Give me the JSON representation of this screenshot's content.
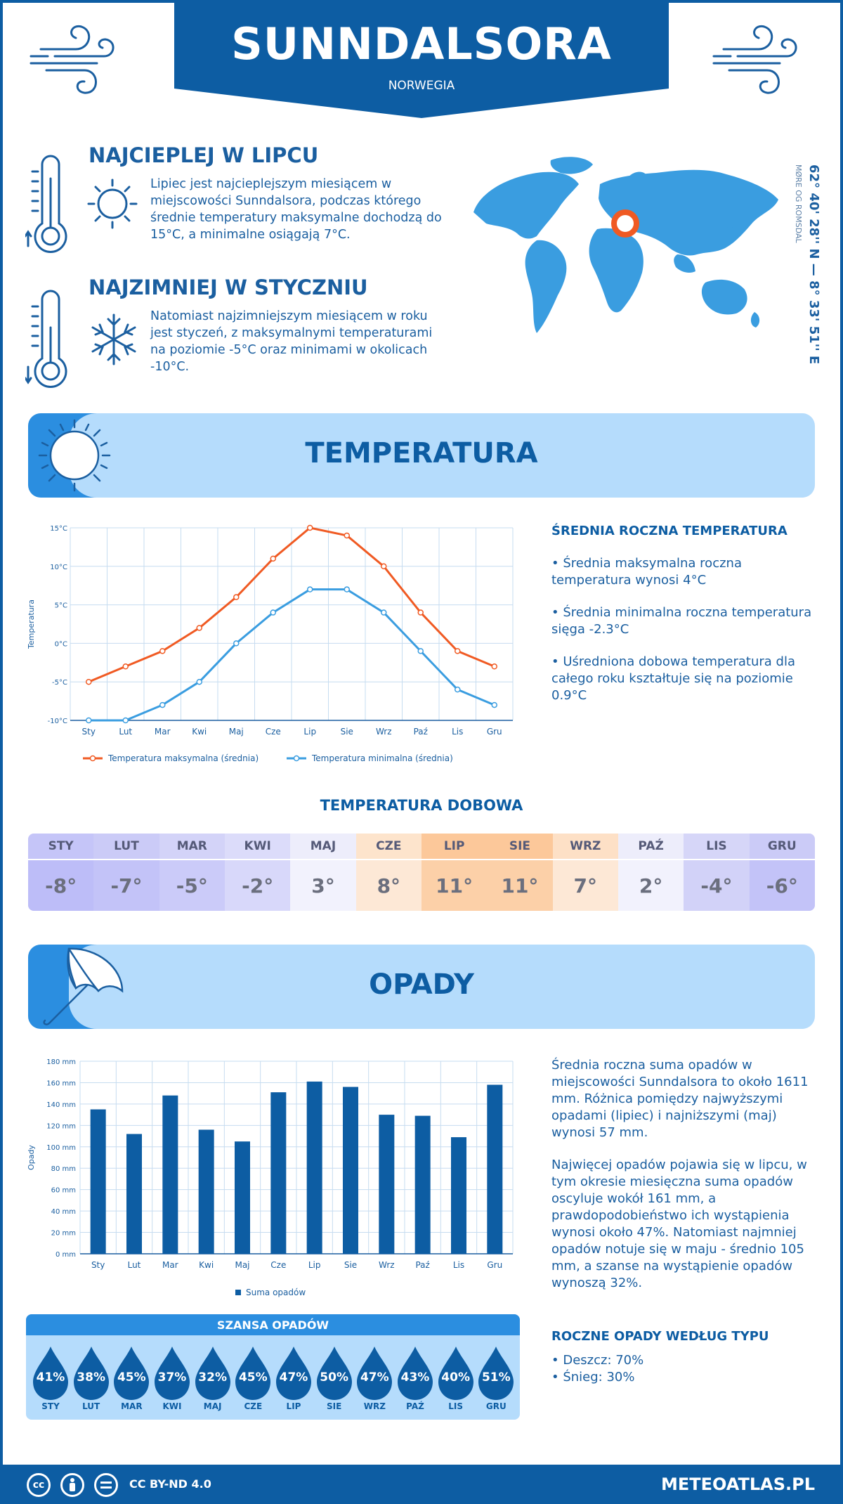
{
  "header": {
    "city": "SUNNDALSORA",
    "country": "NORWEGIA"
  },
  "hottest": {
    "title": "NAJCIEPLEJ W LIPCU",
    "text": "Lipiec jest najcieplejszym miesiącem w miejscowości Sunndalsora, podczas którego średnie temperatury maksymalne dochodzą do 15°C, a minimalne osiągają 7°C."
  },
  "coldest": {
    "title": "NAJZIMNIEJ W STYCZNIU",
    "text": "Natomiast najzimniejszym miesiącem w roku jest styczeń, z maksymalnymi temperaturami na poziomie -5°C oraz minimami w okolicach -10°C."
  },
  "location": {
    "coords": "62° 40' 28'' N — 8° 33' 51'' E",
    "region": "MØRE OG ROMSDAL"
  },
  "temperature_section": {
    "title": "TEMPERATURA",
    "summary_title": "ŚREDNIA ROCZNA TEMPERATURA",
    "bullets": [
      "• Średnia maksymalna roczna temperatura wynosi 4°C",
      "• Średnia minimalna roczna temperatura sięga -2.3°C",
      "• Uśredniona dobowa temperatura dla całego roku kształtuje się na poziomie 0.9°C"
    ]
  },
  "daily": {
    "title": "TEMPERATURA DOBOWA",
    "months": [
      "STY",
      "LUT",
      "MAR",
      "KWI",
      "MAJ",
      "CZE",
      "LIP",
      "SIE",
      "WRZ",
      "PAŹ",
      "LIS",
      "GRU"
    ],
    "values": [
      "-8°",
      "-7°",
      "-5°",
      "-2°",
      "3°",
      "8°",
      "11°",
      "11°",
      "7°",
      "2°",
      "-4°",
      "-6°"
    ],
    "head_colors": [
      "#c5c5f8",
      "#cbcbf7",
      "#d3d3f8",
      "#dcdcfa",
      "#ededfb",
      "#fde4cc",
      "#fcc89a",
      "#fcc89a",
      "#fde0c6",
      "#ededfb",
      "#d6d6f8",
      "#cbcbf7"
    ],
    "val_colors": [
      "#bdbdf8",
      "#c3c3f8",
      "#cbcbf9",
      "#d8d8fa",
      "#f2f2fd",
      "#fde8d6",
      "#fcd0a8",
      "#fcd0a8",
      "#fde8d6",
      "#f2f2fd",
      "#d2d2f8",
      "#c3c3f8"
    ]
  },
  "precip_section": {
    "title": "OPADY",
    "para1": "Średnia roczna suma opadów w miejscowości Sunndalsora to około 1611 mm. Różnica pomiędzy najwyższymi opadami (lipiec) i najniższymi (maj) wynosi 57 mm.",
    "para2": "Najwięcej opadów pojawia się w lipcu, w tym okresie miesięczna suma opadów oscyluje wokół 161 mm, a prawdopodobieństwo ich wystąpienia wynosi około 47%. Natomiast najmniej opadów notuje się w maju - średnio 105 mm, a szanse na wystąpienie opadów wynoszą 32%.",
    "type_title": "ROCZNE OPADY WEDŁUG TYPU",
    "types": [
      "• Deszcz: 70%",
      "• Śnieg: 30%"
    ]
  },
  "chance": {
    "title": "SZANSA OPADÓW",
    "months": [
      "STY",
      "LUT",
      "MAR",
      "KWI",
      "MAJ",
      "CZE",
      "LIP",
      "SIE",
      "WRZ",
      "PAŹ",
      "LIS",
      "GRU"
    ],
    "values": [
      "41%",
      "38%",
      "45%",
      "37%",
      "32%",
      "45%",
      "47%",
      "50%",
      "47%",
      "43%",
      "40%",
      "51%"
    ]
  },
  "footer": {
    "license": "CC BY-ND 4.0",
    "site": "METEOATLAS.PL"
  },
  "chart_data": [
    {
      "type": "line",
      "categories": [
        "Sty",
        "Lut",
        "Mar",
        "Kwi",
        "Maj",
        "Cze",
        "Lip",
        "Sie",
        "Wrz",
        "Paź",
        "Lis",
        "Gru"
      ],
      "series": [
        {
          "name": "Temperatura maksymalna (średnia)",
          "values": [
            -5,
            -3,
            -1,
            2,
            6,
            11,
            15,
            14,
            10,
            4,
            -1,
            -3
          ],
          "color": "#f05a23"
        },
        {
          "name": "Temperatura minimalna (średnia)",
          "values": [
            -10,
            -10,
            -8,
            -5,
            0,
            4,
            7,
            7,
            4,
            -1,
            -6,
            -8
          ],
          "color": "#3a9de0"
        }
      ],
      "ylabel": "Temperatura",
      "ylim": [
        -10,
        15
      ],
      "yticks": [
        "15°C",
        "10°C",
        "5°C",
        "0°C",
        "-5°C",
        "-10°C"
      ],
      "grid": true,
      "legend": "bottom"
    },
    {
      "type": "bar",
      "categories": [
        "Sty",
        "Lut",
        "Mar",
        "Kwi",
        "Maj",
        "Cze",
        "Lip",
        "Sie",
        "Wrz",
        "Paź",
        "Lis",
        "Gru"
      ],
      "series": [
        {
          "name": "Suma opadów",
          "values": [
            135,
            112,
            148,
            116,
            105,
            151,
            161,
            156,
            130,
            129,
            109,
            158
          ],
          "color": "#0d5da3"
        }
      ],
      "ylabel": "Opady",
      "ylim": [
        0,
        180
      ],
      "yticks": [
        "180 mm",
        "160 mm",
        "140 mm",
        "120 mm",
        "100 mm",
        "80 mm",
        "60 mm",
        "40 mm",
        "20 mm",
        "0 mm"
      ],
      "grid": true,
      "legend": "bottom"
    }
  ]
}
